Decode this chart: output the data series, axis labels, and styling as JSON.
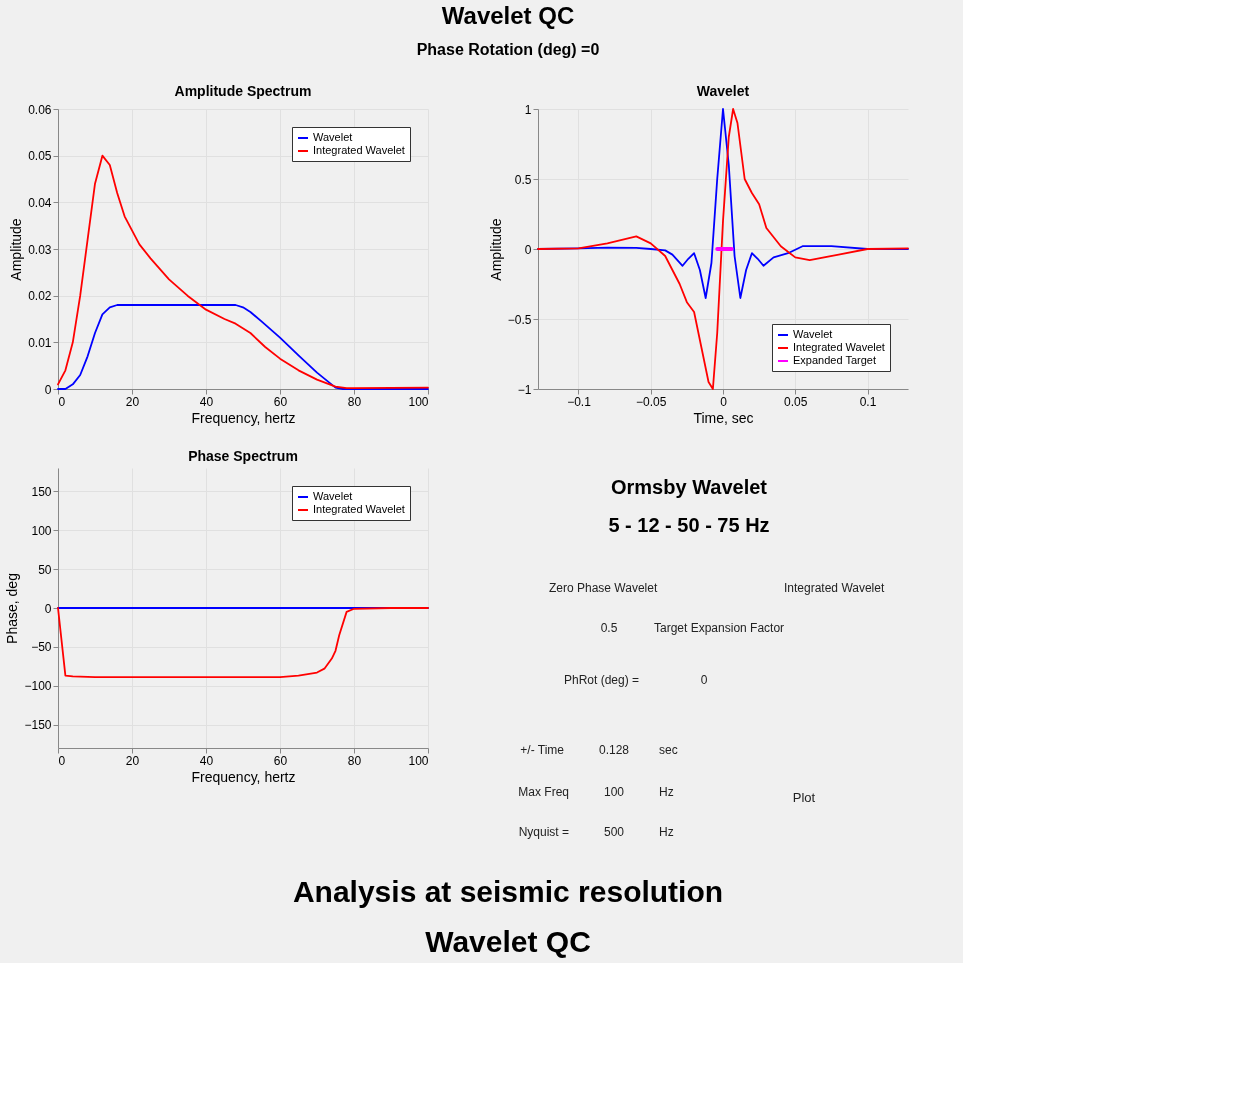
{
  "chart_data": [
    {
      "type": "other",
      "title": "Wavelet QC",
      "subtitle": "Phase Rotation (deg) =0"
    },
    {
      "type": "line",
      "title": "Amplitude Spectrum",
      "xlabel": "Frequency, hertz",
      "ylabel": "Amplitude",
      "xlim": [
        0,
        100
      ],
      "ylim": [
        0,
        0.06
      ],
      "xticks": [
        0,
        20,
        40,
        60,
        80,
        100
      ],
      "yticks": [
        0,
        0.01,
        0.02,
        0.03,
        0.04,
        0.05,
        0.06
      ],
      "grid": true,
      "legend": "top right",
      "series": [
        {
          "name": "Wavelet",
          "color": "#0000ff",
          "x": [
            0,
            2,
            4,
            6,
            8,
            10,
            12,
            14,
            16,
            20,
            30,
            40,
            48,
            50,
            52,
            55,
            60,
            65,
            70,
            75,
            77,
            80,
            100
          ],
          "values": [
            0,
            0,
            0.001,
            0.003,
            0.007,
            0.012,
            0.016,
            0.0175,
            0.018,
            0.018,
            0.018,
            0.018,
            0.018,
            0.0175,
            0.0165,
            0.0145,
            0.011,
            0.0072,
            0.0035,
            0.0003,
            0,
            0,
            0
          ]
        },
        {
          "name": "Integrated Wavelet",
          "color": "#ff0000",
          "x": [
            0,
            2,
            4,
            6,
            8,
            10,
            12,
            14,
            16,
            18,
            20,
            22,
            25,
            30,
            35,
            40,
            45,
            48,
            52,
            56,
            60,
            65,
            70,
            75,
            78,
            80,
            100
          ],
          "values": [
            0.001,
            0.004,
            0.01,
            0.02,
            0.032,
            0.044,
            0.05,
            0.048,
            0.042,
            0.037,
            0.034,
            0.031,
            0.028,
            0.0235,
            0.02,
            0.017,
            0.015,
            0.014,
            0.012,
            0.009,
            0.0065,
            0.004,
            0.002,
            0.0005,
            0.0002,
            0.0002,
            0.0003
          ]
        }
      ]
    },
    {
      "type": "line",
      "title": "Wavelet",
      "xlabel": "Time, sec",
      "ylabel": "Amplitude",
      "xlim": [
        -0.128,
        0.128
      ],
      "ylim": [
        -1,
        1
      ],
      "xticks": [
        -0.1,
        -0.05,
        0,
        0.05,
        0.1
      ],
      "yticks": [
        -1,
        -0.5,
        0,
        0.5,
        1
      ],
      "grid": true,
      "legend": "bottom right",
      "series": [
        {
          "name": "Wavelet",
          "color": "#0000ff",
          "x": [
            -0.128,
            -0.1,
            -0.08,
            -0.06,
            -0.05,
            -0.04,
            -0.035,
            -0.028,
            -0.024,
            -0.02,
            -0.016,
            -0.012,
            -0.008,
            -0.004,
            0,
            0.004,
            0.008,
            0.012,
            0.016,
            0.02,
            0.024,
            0.028,
            0.035,
            0.045,
            0.055,
            0.075,
            0.1,
            0.128
          ],
          "values": [
            0,
            0.005,
            0.01,
            0.008,
            0,
            -0.01,
            -0.04,
            -0.12,
            -0.07,
            -0.03,
            -0.15,
            -0.35,
            -0.1,
            0.5,
            1,
            0.6,
            -0.05,
            -0.35,
            -0.15,
            -0.03,
            -0.07,
            -0.12,
            -0.06,
            -0.03,
            0.02,
            0.02,
            0,
            0
          ]
        },
        {
          "name": "Integrated Wavelet",
          "color": "#ff0000",
          "x": [
            -0.128,
            -0.1,
            -0.08,
            -0.06,
            -0.05,
            -0.04,
            -0.03,
            -0.025,
            -0.02,
            -0.015,
            -0.01,
            -0.007,
            -0.004,
            0,
            0.004,
            0.007,
            0.01,
            0.015,
            0.02,
            0.025,
            0.03,
            0.04,
            0.05,
            0.06,
            0.08,
            0.1,
            0.128
          ],
          "values": [
            0,
            0.005,
            0.04,
            0.09,
            0.04,
            -0.05,
            -0.25,
            -0.38,
            -0.45,
            -0.7,
            -0.95,
            -1,
            -0.6,
            0.2,
            0.8,
            1,
            0.9,
            0.5,
            0.4,
            0.32,
            0.15,
            0.02,
            -0.06,
            -0.08,
            -0.04,
            0,
            0.005
          ]
        },
        {
          "name": "Expanded Target",
          "color": "#ff00ff",
          "x": [
            -0.004,
            0.006
          ],
          "values": [
            0,
            0
          ]
        }
      ]
    },
    {
      "type": "line",
      "title": "Phase Spectrum",
      "xlabel": "Frequency, hertz",
      "ylabel": "Phase, deg",
      "xlim": [
        0,
        100
      ],
      "ylim": [
        -180,
        180
      ],
      "xticks": [
        0,
        20,
        40,
        60,
        80,
        100
      ],
      "yticks": [
        -150,
        -100,
        -50,
        0,
        50,
        100,
        150
      ],
      "grid": true,
      "legend": "top right",
      "series": [
        {
          "name": "Wavelet",
          "color": "#0000ff",
          "x": [
            0,
            100
          ],
          "values": [
            0,
            0
          ]
        },
        {
          "name": "Integrated Wavelet",
          "color": "#ff0000",
          "x": [
            0,
            2,
            4,
            10,
            20,
            40,
            60,
            65,
            70,
            72,
            74,
            75,
            76,
            78,
            80,
            90,
            100
          ],
          "values": [
            0,
            -87,
            -88,
            -89,
            -89,
            -89,
            -89,
            -87,
            -83,
            -78,
            -65,
            -55,
            -35,
            -5,
            -1,
            0,
            0
          ]
        }
      ]
    },
    {
      "type": "other",
      "title": "Ormsby Wavelet",
      "subtitle": "5 - 12 - 50 - 75 Hz",
      "annotations": [
        "Zero Phase Wavelet",
        "Integrated Wavelet",
        "0.5",
        "Target Expansion Factor",
        "PhRot (deg) =",
        "0",
        "+/- Time",
        "0.128",
        "sec",
        "Max Freq",
        "100",
        "Hz",
        "Nyquist =",
        "500",
        "Hz",
        "Plot"
      ]
    },
    {
      "type": "other",
      "annotations": [
        "Analysis at seismic resolution",
        "Wavelet QC"
      ]
    }
  ]
}
